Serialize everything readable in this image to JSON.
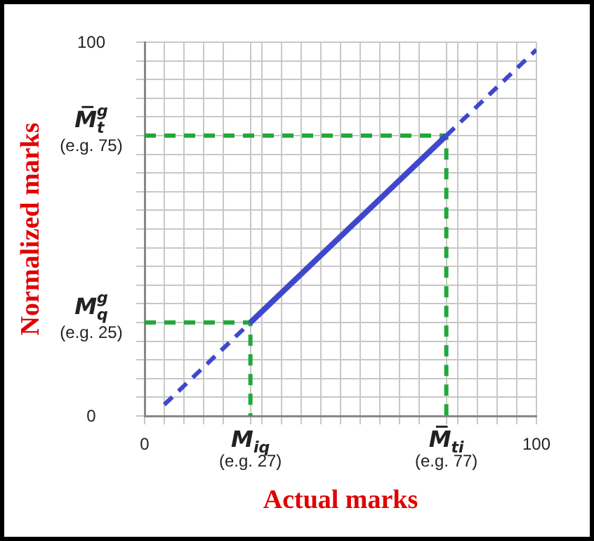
{
  "chart_data": {
    "type": "line",
    "xlabel": "Actual marks",
    "ylabel": "Normalized marks",
    "xlim": [
      0,
      100
    ],
    "ylim": [
      0,
      100
    ],
    "xticks": [
      0,
      {
        "value": 5,
        "label": null
      },
      {
        "value": 10,
        "label": null
      },
      {
        "value": 15,
        "label": null
      },
      {
        "value": 20,
        "label": null
      },
      {
        "value": 27,
        "label": "M$_{iq}$\n(e.g. 27)"
      },
      {
        "value": 30,
        "label": null
      },
      {
        "value": 35,
        "label": null
      },
      {
        "value": 40,
        "label": null
      },
      {
        "value": 45,
        "label": null
      },
      {
        "value": 50,
        "label": null
      },
      {
        "value": 55,
        "label": null
      },
      {
        "value": 60,
        "label": null
      },
      {
        "value": 65,
        "label": null
      },
      {
        "value": 70,
        "label": null
      },
      {
        "value": 77,
        "label": "M̅$_{ti}$\n(e.g. 77)"
      },
      {
        "value": 80,
        "label": null
      },
      {
        "value": 85,
        "label": null
      },
      {
        "value": 90,
        "label": null
      },
      {
        "value": 95,
        "label": null
      },
      100
    ],
    "yticks": [
      0,
      {
        "value": 5,
        "label": null
      },
      {
        "value": 10,
        "label": null
      },
      {
        "value": 15,
        "label": null
      },
      {
        "value": 20,
        "label": null
      },
      {
        "value": 25,
        "label": "M$_{q}$$^{g}$\n(e.g. 25)"
      },
      {
        "value": 30,
        "label": null
      },
      {
        "value": 35,
        "label": null
      },
      {
        "value": 40,
        "label": null
      },
      {
        "value": 45,
        "label": null
      },
      {
        "value": 50,
        "label": null
      },
      {
        "value": 55,
        "label": null
      },
      {
        "value": 60,
        "label": null
      },
      {
        "value": 65,
        "label": null
      },
      {
        "value": 70,
        "label": null
      },
      {
        "value": 75,
        "label": "M̅$_{t}$$^{g}$\n(e.g. 75)"
      },
      {
        "value": 80,
        "label": null
      },
      {
        "value": 85,
        "label": null
      },
      {
        "value": 90,
        "label": null
      },
      {
        "value": 95,
        "label": null
      },
      100
    ],
    "grid": true,
    "legend": false,
    "marker": "none",
    "series": [
      {
        "color": "#3f48cc",
        "line_style": "dashed",
        "x": [
          5,
          27
        ],
        "values": [
          3,
          25
        ]
      },
      {
        "color": "#3f48cc",
        "line_style": "solid",
        "x": [
          27,
          77
        ],
        "values": [
          25,
          75
        ]
      },
      {
        "color": "#3f48cc",
        "line_style": "dashed",
        "x": [
          77,
          100
        ],
        "values": [
          75,
          98
        ]
      },
      {
        "color": "#22a83a",
        "line_style": "dashed",
        "x": [
          0,
          77,
          77
        ],
        "values": [
          75,
          75,
          0
        ]
      },
      {
        "color": "#22a83a",
        "line_style": "dashed",
        "x": [
          0,
          27,
          27
        ],
        "values": [
          25,
          25,
          0
        ]
      }
    ]
  }
}
